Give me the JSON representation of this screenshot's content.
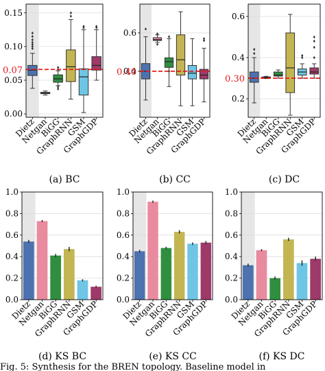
{
  "figure": {
    "caption_fragment": "Fig. 5: Synthesis for the BREN topology. Baseline model in"
  },
  "chart_data": [
    {
      "type": "box",
      "caption": "(a) BC",
      "categories": [
        "Dietz",
        "Netgan",
        "BiGG",
        "GraphRNN",
        "GSM",
        "GraphGDP"
      ],
      "colors": [
        "#4c72b0",
        "#e98b9f",
        "#2f8f3f",
        "#c4b553",
        "#6ec5e6",
        "#9d3a6a"
      ],
      "highlighted_category": "Dietz",
      "yticks": [
        0.0,
        0.05,
        0.1,
        0.15
      ],
      "ylim": [
        -0.005,
        0.163
      ],
      "reference_line": {
        "value": 0.066,
        "label": "0.07",
        "color": "#e41a1c"
      },
      "boxes": [
        {
          "whislo": 0.038,
          "q1": 0.057,
          "med": 0.065,
          "q3": 0.072,
          "whishi": 0.09,
          "fliers": [
            0.097,
            0.1,
            0.103,
            0.106,
            0.11,
            0.115,
            0.12
          ]
        },
        {
          "whislo": 0.028,
          "q1": 0.03,
          "med": 0.031,
          "q3": 0.032,
          "whishi": 0.034,
          "fliers": []
        },
        {
          "whislo": 0.042,
          "q1": 0.047,
          "med": 0.052,
          "q3": 0.058,
          "whishi": 0.064,
          "fliers": [
            0.037,
            0.04,
            0.066,
            0.069
          ]
        },
        {
          "whislo": 0.022,
          "q1": 0.048,
          "med": 0.07,
          "q3": 0.095,
          "whishi": 0.14,
          "fliers": [
            0.145,
            0.15
          ]
        },
        {
          "whislo": 0.002,
          "q1": 0.028,
          "med": 0.055,
          "q3": 0.067,
          "whishi": 0.125,
          "fliers": [
            0.128,
            0.13
          ]
        },
        {
          "whislo": 0.05,
          "q1": 0.065,
          "med": 0.072,
          "q3": 0.085,
          "whishi": 0.125,
          "fliers": [
            0.128,
            0.13
          ]
        }
      ]
    },
    {
      "type": "box",
      "caption": "(b) CC",
      "categories": [
        "Dietz",
        "Netgan",
        "BiGG",
        "GraphRNN",
        "GSM",
        "GraphGDP"
      ],
      "colors": [
        "#4c72b0",
        "#e98b9f",
        "#2f8f3f",
        "#c4b553",
        "#6ec5e6",
        "#9d3a6a"
      ],
      "highlighted_category": "Dietz",
      "yticks": [
        0.4,
        0.6
      ],
      "ylim": [
        0.16,
        0.75
      ],
      "reference_line": {
        "value": 0.4,
        "label": "0.40",
        "color": "#e41a1c"
      },
      "boxes": [
        {
          "whislo": 0.25,
          "q1": 0.36,
          "med": 0.4,
          "q3": 0.44,
          "whishi": 0.58,
          "fliers": [
            0.62
          ]
        },
        {
          "whislo": 0.55,
          "q1": 0.56,
          "med": 0.565,
          "q3": 0.575,
          "whishi": 0.59,
          "fliers": [
            0.54,
            0.595
          ]
        },
        {
          "whislo": 0.32,
          "q1": 0.42,
          "med": 0.45,
          "q3": 0.47,
          "whishi": 0.57,
          "fliers": [
            0.4,
            0.58
          ]
        },
        {
          "whislo": 0.22,
          "q1": 0.38,
          "med": 0.46,
          "q3": 0.59,
          "whishi": 0.71,
          "fliers": []
        },
        {
          "whislo": 0.22,
          "q1": 0.36,
          "med": 0.39,
          "q3": 0.43,
          "whishi": 0.57,
          "fliers": []
        },
        {
          "whislo": 0.24,
          "q1": 0.36,
          "med": 0.38,
          "q3": 0.41,
          "whishi": 0.52,
          "fliers": [
            0.56,
            0.57
          ]
        }
      ]
    },
    {
      "type": "box",
      "caption": "(c) DC",
      "categories": [
        "Dietz",
        "Netgan",
        "BiGG",
        "GraphRNN",
        "GSM",
        "GraphGDP"
      ],
      "colors": [
        "#4c72b0",
        "#e98b9f",
        "#2f8f3f",
        "#c4b553",
        "#6ec5e6",
        "#9d3a6a"
      ],
      "highlighted_category": "Dietz",
      "yticks": [
        0.2,
        0.4,
        0.6
      ],
      "ylim": [
        0.11,
        0.66
      ],
      "reference_line": {
        "value": 0.3,
        "label": "0.30",
        "color": "#e41a1c"
      },
      "boxes": [
        {
          "whislo": 0.18,
          "q1": 0.28,
          "med": 0.3,
          "q3": 0.33,
          "whishi": 0.4,
          "fliers": [
            0.42,
            0.44
          ]
        },
        {
          "whislo": 0.298,
          "q1": 0.301,
          "med": 0.303,
          "q3": 0.306,
          "whishi": 0.309,
          "fliers": []
        },
        {
          "whislo": 0.3,
          "q1": 0.31,
          "med": 0.315,
          "q3": 0.33,
          "whishi": 0.34,
          "fliers": []
        },
        {
          "whislo": 0.12,
          "q1": 0.23,
          "med": 0.35,
          "q3": 0.52,
          "whishi": 0.61,
          "fliers": []
        },
        {
          "whislo": 0.3,
          "q1": 0.315,
          "med": 0.33,
          "q3": 0.345,
          "whishi": 0.37,
          "fliers": [
            0.4,
            0.41
          ]
        },
        {
          "whislo": 0.3,
          "q1": 0.32,
          "med": 0.33,
          "q3": 0.35,
          "whishi": 0.37,
          "fliers": [
            0.4,
            0.45,
            0.48,
            0.5
          ]
        }
      ]
    },
    {
      "type": "bar",
      "caption": "(d) KS BC",
      "categories": [
        "Dietz",
        "Netgan",
        "BiGG",
        "GraphRNN",
        "GSM",
        "GraphGDP"
      ],
      "colors": [
        "#4c72b0",
        "#e98b9f",
        "#2f8f3f",
        "#c4b553",
        "#6ec5e6",
        "#9d3a6a"
      ],
      "highlighted_category": "Dietz",
      "values": [
        0.54,
        0.73,
        0.41,
        0.47,
        0.18,
        0.12
      ],
      "errors": [
        0.015,
        0.01,
        0.015,
        0.02,
        0.01,
        0.01
      ],
      "yticks": [
        0.0,
        0.2,
        0.4,
        0.6,
        0.8,
        1.0
      ],
      "ylim": [
        0,
        1.0
      ]
    },
    {
      "type": "bar",
      "caption": "(e) KS CC",
      "categories": [
        "Dietz",
        "Netgan",
        "BiGG",
        "GraphRNN",
        "GSM",
        "GraphGDP"
      ],
      "colors": [
        "#4c72b0",
        "#e98b9f",
        "#2f8f3f",
        "#c4b553",
        "#6ec5e6",
        "#9d3a6a"
      ],
      "highlighted_category": "Dietz",
      "values": [
        0.45,
        0.91,
        0.48,
        0.63,
        0.52,
        0.53
      ],
      "errors": [
        0.012,
        0.01,
        0.012,
        0.015,
        0.012,
        0.015
      ],
      "yticks": [
        0.0,
        0.2,
        0.4,
        0.6,
        0.8,
        1.0
      ],
      "ylim": [
        0,
        1.0
      ]
    },
    {
      "type": "bar",
      "caption": "(f) KS DC",
      "categories": [
        "Dietz",
        "Netgan",
        "BiGG",
        "GraphRNN",
        "GSM",
        "GraphGDP"
      ],
      "colors": [
        "#4c72b0",
        "#e98b9f",
        "#2f8f3f",
        "#c4b553",
        "#6ec5e6",
        "#9d3a6a"
      ],
      "highlighted_category": "Dietz",
      "values": [
        0.32,
        0.46,
        0.2,
        0.56,
        0.34,
        0.38
      ],
      "errors": [
        0.015,
        0.01,
        0.015,
        0.015,
        0.025,
        0.02
      ],
      "yticks": [
        0.0,
        0.2,
        0.4,
        0.6,
        0.8,
        1.0
      ],
      "ylim": [
        0,
        1.0
      ]
    }
  ]
}
